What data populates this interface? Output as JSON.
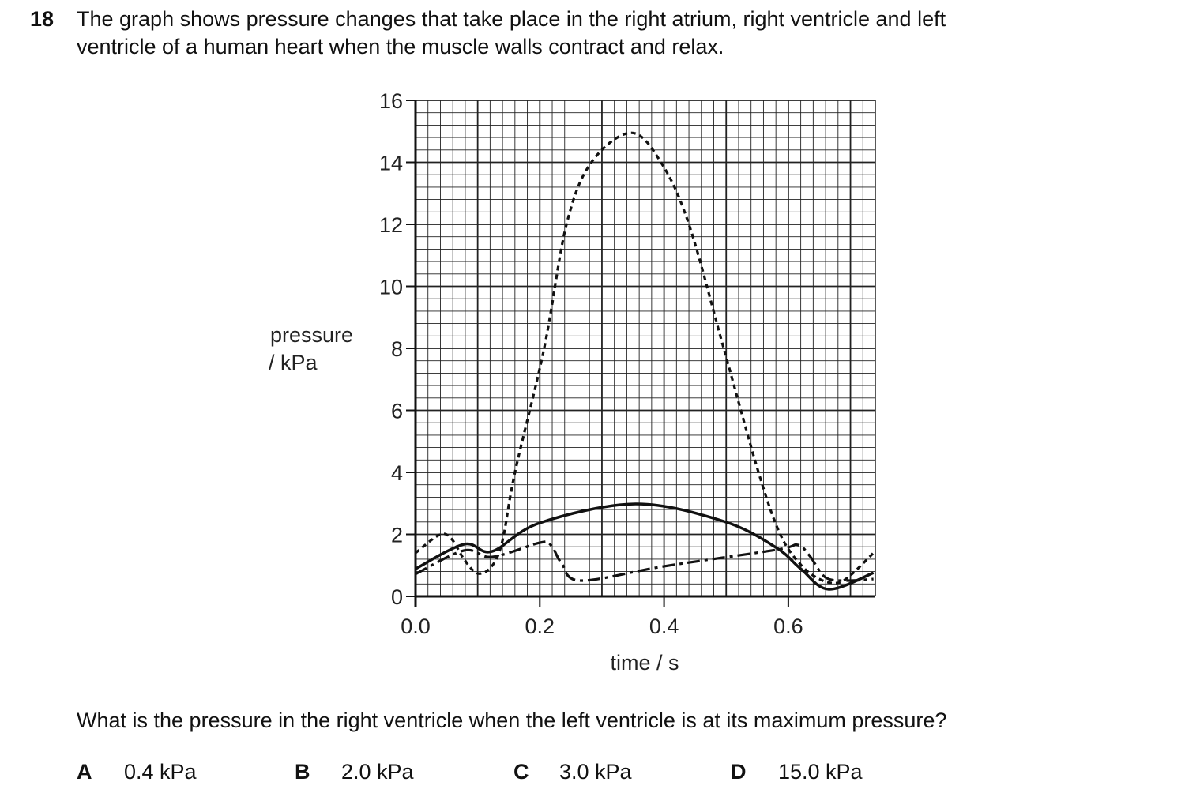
{
  "question": {
    "number": "18",
    "stem_line1": "The graph shows pressure changes that take place in the right atrium, right ventricle and left",
    "stem_line2": "ventricle of a human heart when the muscle walls contract and relax.",
    "prompt": "What is the pressure in the right ventricle when the left ventricle is at its maximum pressure?",
    "options": [
      {
        "letter": "A",
        "text": "0.4 kPa"
      },
      {
        "letter": "B",
        "text": "2.0 kPa"
      },
      {
        "letter": "C",
        "text": "3.0 kPa"
      },
      {
        "letter": "D",
        "text": "15.0 kPa"
      }
    ]
  },
  "chart_data": {
    "type": "line",
    "title": "",
    "xlabel": "time / s",
    "ylabel_line1": "pressure",
    "ylabel_line2": "/ kPa",
    "xlim": [
      0,
      0.74
    ],
    "ylim": [
      0,
      16
    ],
    "grid": true,
    "x_major_step": 0.1,
    "x_minor_step": 0.02,
    "y_major_step": 2,
    "y_minor_step": 0.4,
    "xticks": [
      "0.0",
      "0.2",
      "0.4",
      "0.6"
    ],
    "xtick_values": [
      0,
      0.2,
      0.4,
      0.6
    ],
    "yticks": [
      "0",
      "2",
      "4",
      "6",
      "8",
      "10",
      "12",
      "14",
      "16"
    ],
    "ytick_values": [
      0,
      2,
      4,
      6,
      8,
      10,
      12,
      14,
      16
    ],
    "series": [
      {
        "name": "dotted",
        "style": "dotted",
        "x": [
          0,
          0.039,
          0.058,
          0.078,
          0.1,
          0.123,
          0.14,
          0.16,
          0.207,
          0.243,
          0.283,
          0.347,
          0.395,
          0.44,
          0.496,
          0.552,
          0.587,
          0.62,
          0.65,
          0.678,
          0.7,
          0.737
        ],
        "y": [
          1.4,
          1.99,
          1.85,
          1.2,
          0.74,
          0.98,
          1.8,
          4.0,
          8.0,
          12.0,
          14.0,
          14.95,
          14.0,
          12.0,
          8.0,
          4.0,
          2.0,
          1.02,
          0.56,
          0.43,
          0.68,
          1.4
        ]
      },
      {
        "name": "solid",
        "style": "solid",
        "x": [
          0,
          0.078,
          0.123,
          0.2,
          0.354,
          0.496,
          0.58,
          0.62,
          0.665,
          0.737
        ],
        "y": [
          0.89,
          1.68,
          1.45,
          2.37,
          2.98,
          2.42,
          1.58,
          0.89,
          0.23,
          0.76
        ]
      },
      {
        "name": "dash-dot",
        "style": "dash-dot",
        "x": [
          0,
          0.078,
          0.123,
          0.2,
          0.218,
          0.235,
          0.266,
          0.4,
          0.58,
          0.615,
          0.635,
          0.66,
          0.695,
          0.737
        ],
        "y": [
          0.72,
          1.48,
          1.27,
          1.73,
          1.65,
          1.07,
          0.51,
          0.97,
          1.5,
          1.66,
          1.29,
          0.61,
          0.51,
          0.56
        ]
      }
    ]
  }
}
